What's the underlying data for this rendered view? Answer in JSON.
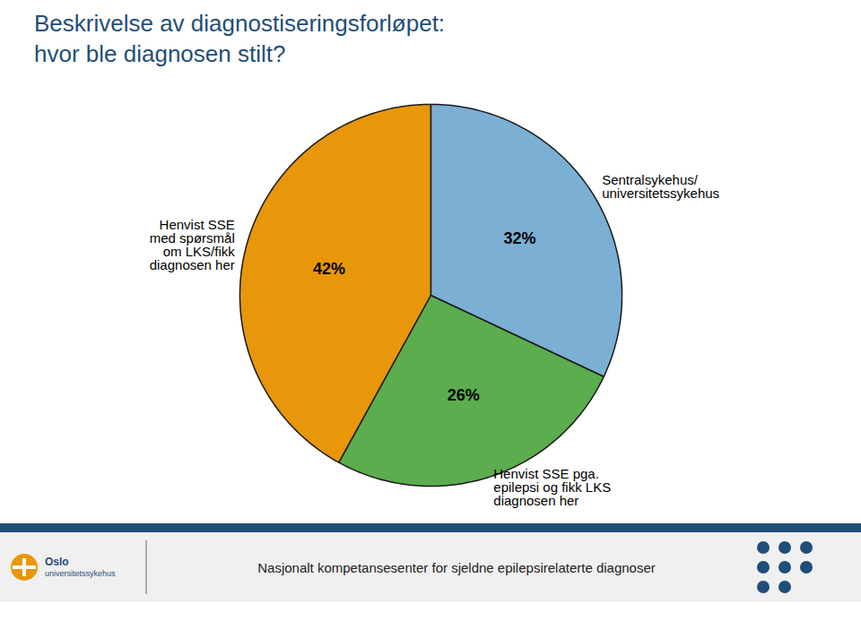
{
  "chart_data": {
    "type": "pie",
    "title": "Beskrivelse av diagnostiseringsforløpet:\nhvor ble diagnosen stilt?",
    "categories": [
      "Henvist SSE\nmed spørsmål\nom LKS/fikk\ndiagnosen her",
      "Henvist SSE pga.\nepilepsi og fikk LKS\ndiagnosen her",
      "Sentralsykehus/\nuniversitetssykehus"
    ],
    "values": [
      42,
      26,
      32
    ],
    "value_labels": [
      "42%",
      "26%",
      "32%"
    ],
    "colors": [
      "#E8960A",
      "#5BAD4E",
      "#7BAFD4"
    ],
    "data_labels": true,
    "tick_labels": false,
    "caption": "Nasjonalt kompetansesenter for sjeldne epilepsirelaterte diagnoser",
    "annotations": [
      "Oslo",
      "universitetssykehus"
    ]
  }
}
